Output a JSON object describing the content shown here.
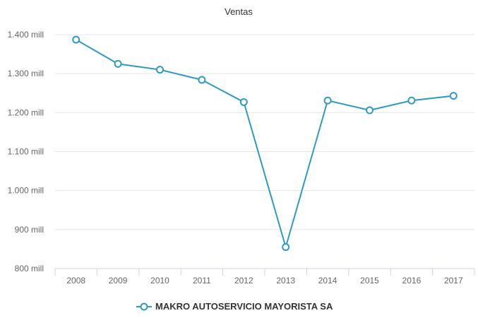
{
  "chart_data": {
    "type": "line",
    "title": "Ventas",
    "xlabel": "",
    "ylabel": "",
    "categories": [
      "2008",
      "2009",
      "2010",
      "2011",
      "2012",
      "2013",
      "2014",
      "2015",
      "2016",
      "2017"
    ],
    "series": [
      {
        "name": "MAKRO AUTOSERVICIO MAYORISTA SA",
        "values": [
          1387,
          1325,
          1310,
          1284,
          1227,
          855,
          1231,
          1206,
          1231,
          1243
        ]
      }
    ],
    "ylim": [
      800,
      1400
    ],
    "y_ticks": [
      800,
      900,
      1000,
      1100,
      1200,
      1300,
      1400
    ],
    "y_tick_labels": [
      "800 mill",
      "900 mill",
      "1.000 mill",
      "1.100 mill",
      "1.200 mill",
      "1.300 mill",
      "1.400 mill"
    ],
    "grid": true,
    "legend_position": "bottom-center",
    "colors": {
      "series": "#2e9bc2",
      "grid": "#e6e6e6",
      "axis": "#ccd6eb"
    }
  }
}
